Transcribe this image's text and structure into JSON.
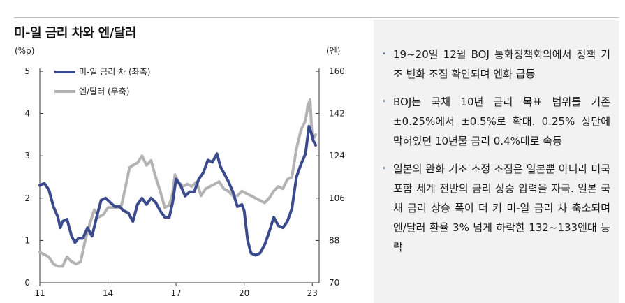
{
  "title": "미-일 금리 차와 엔/달러",
  "colors": {
    "spread": "#3b4a8c",
    "yen": "#b3b3b3",
    "panel_bg": "#f2f2f2",
    "bullet": "#5b7fa6"
  },
  "chart_data": {
    "type": "line",
    "left_axis": {
      "unit_label": "(%p)",
      "ticks": [
        "0",
        "1",
        "2",
        "3",
        "4",
        "5"
      ],
      "ylim": [
        0,
        5
      ]
    },
    "right_axis": {
      "unit_label": "(엔)",
      "ticks": [
        "70",
        "88",
        "106",
        "124",
        "142",
        "160"
      ],
      "ylim": [
        70,
        160
      ]
    },
    "x_axis": {
      "ticks": [
        "11",
        "14",
        "17",
        "20",
        "23"
      ],
      "xlim": [
        2011,
        2023.3
      ]
    },
    "legend": {
      "position": "top-left"
    },
    "series": [
      {
        "name": "미-일 금리 차 (좌축)",
        "axis": "left",
        "points": [
          [
            2011.0,
            2.3
          ],
          [
            2011.2,
            2.35
          ],
          [
            2011.4,
            2.2
          ],
          [
            2011.6,
            1.8
          ],
          [
            2011.8,
            1.55
          ],
          [
            2011.9,
            1.3
          ],
          [
            2012.0,
            1.45
          ],
          [
            2012.2,
            1.5
          ],
          [
            2012.4,
            1.1
          ],
          [
            2012.55,
            0.95
          ],
          [
            2012.7,
            1.05
          ],
          [
            2012.9,
            1.05
          ],
          [
            2013.1,
            1.3
          ],
          [
            2013.3,
            1.1
          ],
          [
            2013.5,
            1.55
          ],
          [
            2013.7,
            1.95
          ],
          [
            2013.9,
            2.0
          ],
          [
            2014.1,
            1.9
          ],
          [
            2014.3,
            1.8
          ],
          [
            2014.5,
            1.8
          ],
          [
            2014.7,
            1.7
          ],
          [
            2014.9,
            1.65
          ],
          [
            2015.1,
            1.45
          ],
          [
            2015.3,
            1.85
          ],
          [
            2015.5,
            2.0
          ],
          [
            2015.7,
            1.85
          ],
          [
            2015.9,
            2.0
          ],
          [
            2016.1,
            1.9
          ],
          [
            2016.3,
            1.7
          ],
          [
            2016.5,
            1.55
          ],
          [
            2016.7,
            1.55
          ],
          [
            2016.85,
            1.9
          ],
          [
            2017.0,
            2.45
          ],
          [
            2017.2,
            2.3
          ],
          [
            2017.4,
            2.05
          ],
          [
            2017.6,
            2.15
          ],
          [
            2017.8,
            2.15
          ],
          [
            2018.0,
            2.45
          ],
          [
            2018.2,
            2.6
          ],
          [
            2018.4,
            2.9
          ],
          [
            2018.6,
            2.85
          ],
          [
            2018.8,
            3.05
          ],
          [
            2018.95,
            2.75
          ],
          [
            2019.1,
            2.6
          ],
          [
            2019.3,
            2.4
          ],
          [
            2019.5,
            2.15
          ],
          [
            2019.7,
            1.8
          ],
          [
            2019.9,
            1.85
          ],
          [
            2020.0,
            1.7
          ],
          [
            2020.15,
            1.0
          ],
          [
            2020.3,
            0.7
          ],
          [
            2020.5,
            0.65
          ],
          [
            2020.7,
            0.7
          ],
          [
            2020.9,
            0.9
          ],
          [
            2021.1,
            1.2
          ],
          [
            2021.3,
            1.55
          ],
          [
            2021.5,
            1.35
          ],
          [
            2021.7,
            1.3
          ],
          [
            2021.9,
            1.45
          ],
          [
            2022.1,
            1.75
          ],
          [
            2022.3,
            2.5
          ],
          [
            2022.5,
            2.8
          ],
          [
            2022.7,
            3.05
          ],
          [
            2022.85,
            3.7
          ],
          [
            2022.95,
            3.55
          ],
          [
            2023.05,
            3.35
          ],
          [
            2023.15,
            3.25
          ]
        ]
      },
      {
        "name": "엔/달러 (우축)",
        "axis": "right",
        "points": [
          [
            2011.0,
            83
          ],
          [
            2011.2,
            82
          ],
          [
            2011.4,
            81
          ],
          [
            2011.6,
            78
          ],
          [
            2011.8,
            77
          ],
          [
            2012.0,
            77
          ],
          [
            2012.2,
            81
          ],
          [
            2012.4,
            79
          ],
          [
            2012.6,
            78
          ],
          [
            2012.8,
            79
          ],
          [
            2013.0,
            88
          ],
          [
            2013.2,
            95
          ],
          [
            2013.4,
            101
          ],
          [
            2013.6,
            98
          ],
          [
            2013.8,
            99
          ],
          [
            2014.0,
            102
          ],
          [
            2014.2,
            102
          ],
          [
            2014.4,
            102
          ],
          [
            2014.6,
            103
          ],
          [
            2014.8,
            112
          ],
          [
            2014.95,
            119
          ],
          [
            2015.1,
            120
          ],
          [
            2015.3,
            121
          ],
          [
            2015.5,
            124
          ],
          [
            2015.7,
            120
          ],
          [
            2015.9,
            122
          ],
          [
            2016.1,
            115
          ],
          [
            2016.3,
            109
          ],
          [
            2016.5,
            102
          ],
          [
            2016.7,
            103
          ],
          [
            2016.85,
            108
          ],
          [
            2016.95,
            116
          ],
          [
            2017.1,
            113
          ],
          [
            2017.3,
            111
          ],
          [
            2017.5,
            112
          ],
          [
            2017.7,
            111
          ],
          [
            2017.9,
            113
          ],
          [
            2018.1,
            107
          ],
          [
            2018.3,
            110
          ],
          [
            2018.5,
            111
          ],
          [
            2018.7,
            112
          ],
          [
            2018.9,
            113
          ],
          [
            2019.1,
            110
          ],
          [
            2019.3,
            109
          ],
          [
            2019.5,
            107
          ],
          [
            2019.7,
            107
          ],
          [
            2019.9,
            109
          ],
          [
            2020.1,
            108
          ],
          [
            2020.3,
            107
          ],
          [
            2020.5,
            106
          ],
          [
            2020.7,
            105
          ],
          [
            2020.9,
            104
          ],
          [
            2021.1,
            106
          ],
          [
            2021.3,
            109
          ],
          [
            2021.5,
            111
          ],
          [
            2021.7,
            110
          ],
          [
            2021.9,
            114
          ],
          [
            2022.1,
            115
          ],
          [
            2022.3,
            127
          ],
          [
            2022.5,
            135
          ],
          [
            2022.7,
            139
          ],
          [
            2022.8,
            145
          ],
          [
            2022.9,
            148
          ],
          [
            2023.0,
            131
          ],
          [
            2023.1,
            132
          ],
          [
            2023.15,
            133
          ]
        ]
      }
    ]
  },
  "bullets": [
    "19~20일 12월 BOJ 통화정책회의에서 정책 기조 변화 조짐 확인되며 엔화 급등",
    "BOJ는 국채 10년 금리 목표 범위를 기존 ±0.25%에서 ±0.5%로 확대. 0.25% 상단에 막혀있던 10년물 금리 0.4%대로 속등",
    "일본의 완화 기조 조정 조짐은 일본뿐 아니라 미국 포함 세계 전반의 금리 상승 압력을 자극. 일본 국채 금리 상승 폭이 더 커 미-일 금리 차 축소되며 엔/달러 환율 3% 넘게 하락한 132~133엔대 등락"
  ]
}
